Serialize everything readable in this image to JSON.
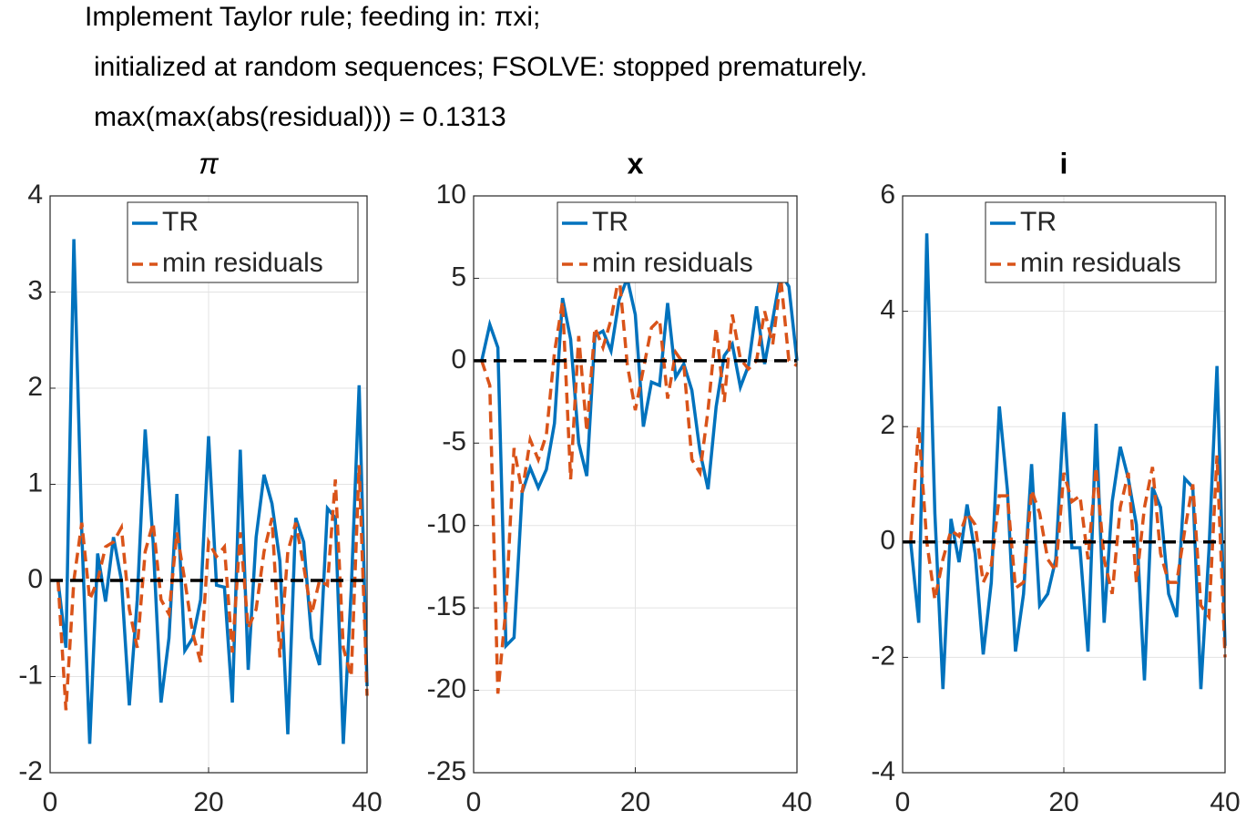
{
  "title_lines": [
    "Implement Taylor rule; feeding in: πxi;",
    "initialized at random sequences; FSOLVE: stopped prematurely.",
    "max(max(abs(residual))) = 0.1313"
  ],
  "chart_data": [
    {
      "type": "line",
      "title": "π",
      "x": [
        1,
        2,
        3,
        4,
        5,
        6,
        7,
        8,
        9,
        10,
        11,
        12,
        13,
        14,
        15,
        16,
        17,
        18,
        19,
        20,
        21,
        22,
        23,
        24,
        25,
        26,
        27,
        28,
        29,
        30,
        31,
        32,
        33,
        34,
        35,
        36,
        37,
        38,
        39,
        40
      ],
      "series": [
        {
          "name": "TR",
          "color": "#0072bd",
          "dash": false,
          "values": [
            0,
            -0.7,
            3.55,
            0.5,
            -1.7,
            0.28,
            -0.22,
            0.45,
            0,
            -1.3,
            -0.2,
            1.57,
            0.4,
            -1.27,
            -0.6,
            0.9,
            -0.73,
            -0.6,
            -0.2,
            1.5,
            -0.05,
            -0.07,
            -1.27,
            1.36,
            -0.93,
            0.45,
            1.1,
            0.8,
            0.2,
            -1.6,
            0.65,
            0.4,
            -0.6,
            -0.88,
            0.75,
            0.65,
            -1.7,
            -0.1,
            2.03,
            -1.1
          ]
        },
        {
          "name": "min residuals",
          "color": "#d95319",
          "dash": true,
          "values": [
            0,
            -1.35,
            0,
            0.6,
            -0.2,
            0,
            0.35,
            0.4,
            0.55,
            -0.3,
            -0.7,
            0.3,
            0.6,
            -0.2,
            -0.35,
            0.5,
            0,
            -0.55,
            -0.85,
            0.4,
            0.25,
            0.35,
            -0.75,
            0.5,
            -0.5,
            -0.3,
            0.3,
            0.65,
            -0.8,
            0.3,
            0.6,
            0.15,
            -0.35,
            0,
            -0.05,
            1.05,
            -0.7,
            -1,
            1.2,
            -1.2
          ]
        }
      ],
      "reference_line": 0,
      "xlim": [
        0,
        40
      ],
      "xticks": [
        0,
        20,
        40
      ],
      "ylim": [
        -2,
        4
      ],
      "yticks": [
        -2,
        -1,
        0,
        1,
        2,
        3,
        4
      ],
      "grid": true,
      "legend": "northeast"
    },
    {
      "type": "line",
      "title": "x",
      "x": [
        1,
        2,
        3,
        4,
        5,
        6,
        7,
        8,
        9,
        10,
        11,
        12,
        13,
        14,
        15,
        16,
        17,
        18,
        19,
        20,
        21,
        22,
        23,
        24,
        25,
        26,
        27,
        28,
        29,
        30,
        31,
        32,
        33,
        34,
        35,
        36,
        37,
        38,
        39,
        40
      ],
      "series": [
        {
          "name": "TR",
          "color": "#0072bd",
          "dash": false,
          "values": [
            0,
            2.2,
            0.8,
            -17.3,
            -16.8,
            -8,
            -6.5,
            -7.7,
            -6.6,
            -3.8,
            3.8,
            1.3,
            -5,
            -7,
            1.5,
            1.8,
            0.6,
            3.7,
            5,
            2.8,
            -4,
            -1.3,
            -1.5,
            3.5,
            -1,
            -0.2,
            -1.8,
            -5.5,
            -7.8,
            -2.8,
            0.3,
            1,
            -1.6,
            -0.3,
            3.3,
            -0.2,
            2.5,
            5.3,
            4.5,
            0
          ]
        },
        {
          "name": "min residuals",
          "color": "#d95319",
          "dash": true,
          "values": [
            0,
            -1.5,
            -20.2,
            -15,
            -5.3,
            -8,
            -4.8,
            -6,
            -4.5,
            0.5,
            3.6,
            -7.2,
            1.5,
            -4.3,
            2,
            0.8,
            2.5,
            5.2,
            -0.2,
            -3,
            -0.5,
            2,
            2.5,
            -2.3,
            0.5,
            -0.2,
            -6,
            -6.8,
            -3,
            2,
            -2.5,
            2.8,
            0.1,
            -0.5,
            0,
            3,
            1,
            5,
            0,
            -0.3
          ]
        }
      ],
      "reference_line": 0,
      "xlim": [
        0,
        40
      ],
      "xticks": [
        0,
        20,
        40
      ],
      "ylim": [
        -25,
        10
      ],
      "yticks": [
        -25,
        -20,
        -15,
        -10,
        -5,
        0,
        5,
        10
      ],
      "grid": true,
      "legend": "northeast"
    },
    {
      "type": "line",
      "title": "i",
      "x": [
        1,
        2,
        3,
        4,
        5,
        6,
        7,
        8,
        9,
        10,
        11,
        12,
        13,
        14,
        15,
        16,
        17,
        18,
        19,
        20,
        21,
        22,
        23,
        24,
        25,
        26,
        27,
        28,
        29,
        30,
        31,
        32,
        33,
        34,
        35,
        36,
        37,
        38,
        39,
        40
      ],
      "series": [
        {
          "name": "TR",
          "color": "#0072bd",
          "dash": false,
          "values": [
            0,
            -1.4,
            5.35,
            0.5,
            -2.55,
            0.4,
            -0.35,
            0.65,
            -0.2,
            -1.95,
            -0.7,
            2.35,
            0.9,
            -1.9,
            -0.9,
            1.35,
            -1.1,
            -0.9,
            -0.3,
            2.25,
            -0.1,
            -0.1,
            -1.9,
            2.05,
            -1.4,
            0.7,
            1.65,
            1.1,
            0.3,
            -2.4,
            0.95,
            0.6,
            -0.9,
            -1.3,
            1.1,
            0.95,
            -2.55,
            -0.15,
            3.05,
            -1.8
          ]
        },
        {
          "name": "min residuals",
          "color": "#d95319",
          "dash": true,
          "values": [
            0,
            2,
            0,
            -1,
            -0.3,
            0.2,
            0.1,
            0.5,
            0.3,
            -0.7,
            -0.4,
            0.8,
            0.8,
            -0.8,
            -0.7,
            0.9,
            0.5,
            -0.3,
            -0.5,
            1.2,
            0.7,
            0.8,
            -0.3,
            1.3,
            -0.3,
            -0.9,
            0.6,
            1.2,
            -0.7,
            0.6,
            1.3,
            -0.2,
            -0.7,
            -0.7,
            0.2,
            1,
            -1.1,
            -1.3,
            1.5,
            -2
          ]
        }
      ],
      "reference_line": 0,
      "xlim": [
        0,
        40
      ],
      "xticks": [
        0,
        20,
        40
      ],
      "ylim": [
        -4,
        6
      ],
      "yticks": [
        -4,
        -2,
        0,
        2,
        4,
        6
      ],
      "grid": true,
      "legend": "northeast"
    }
  ]
}
